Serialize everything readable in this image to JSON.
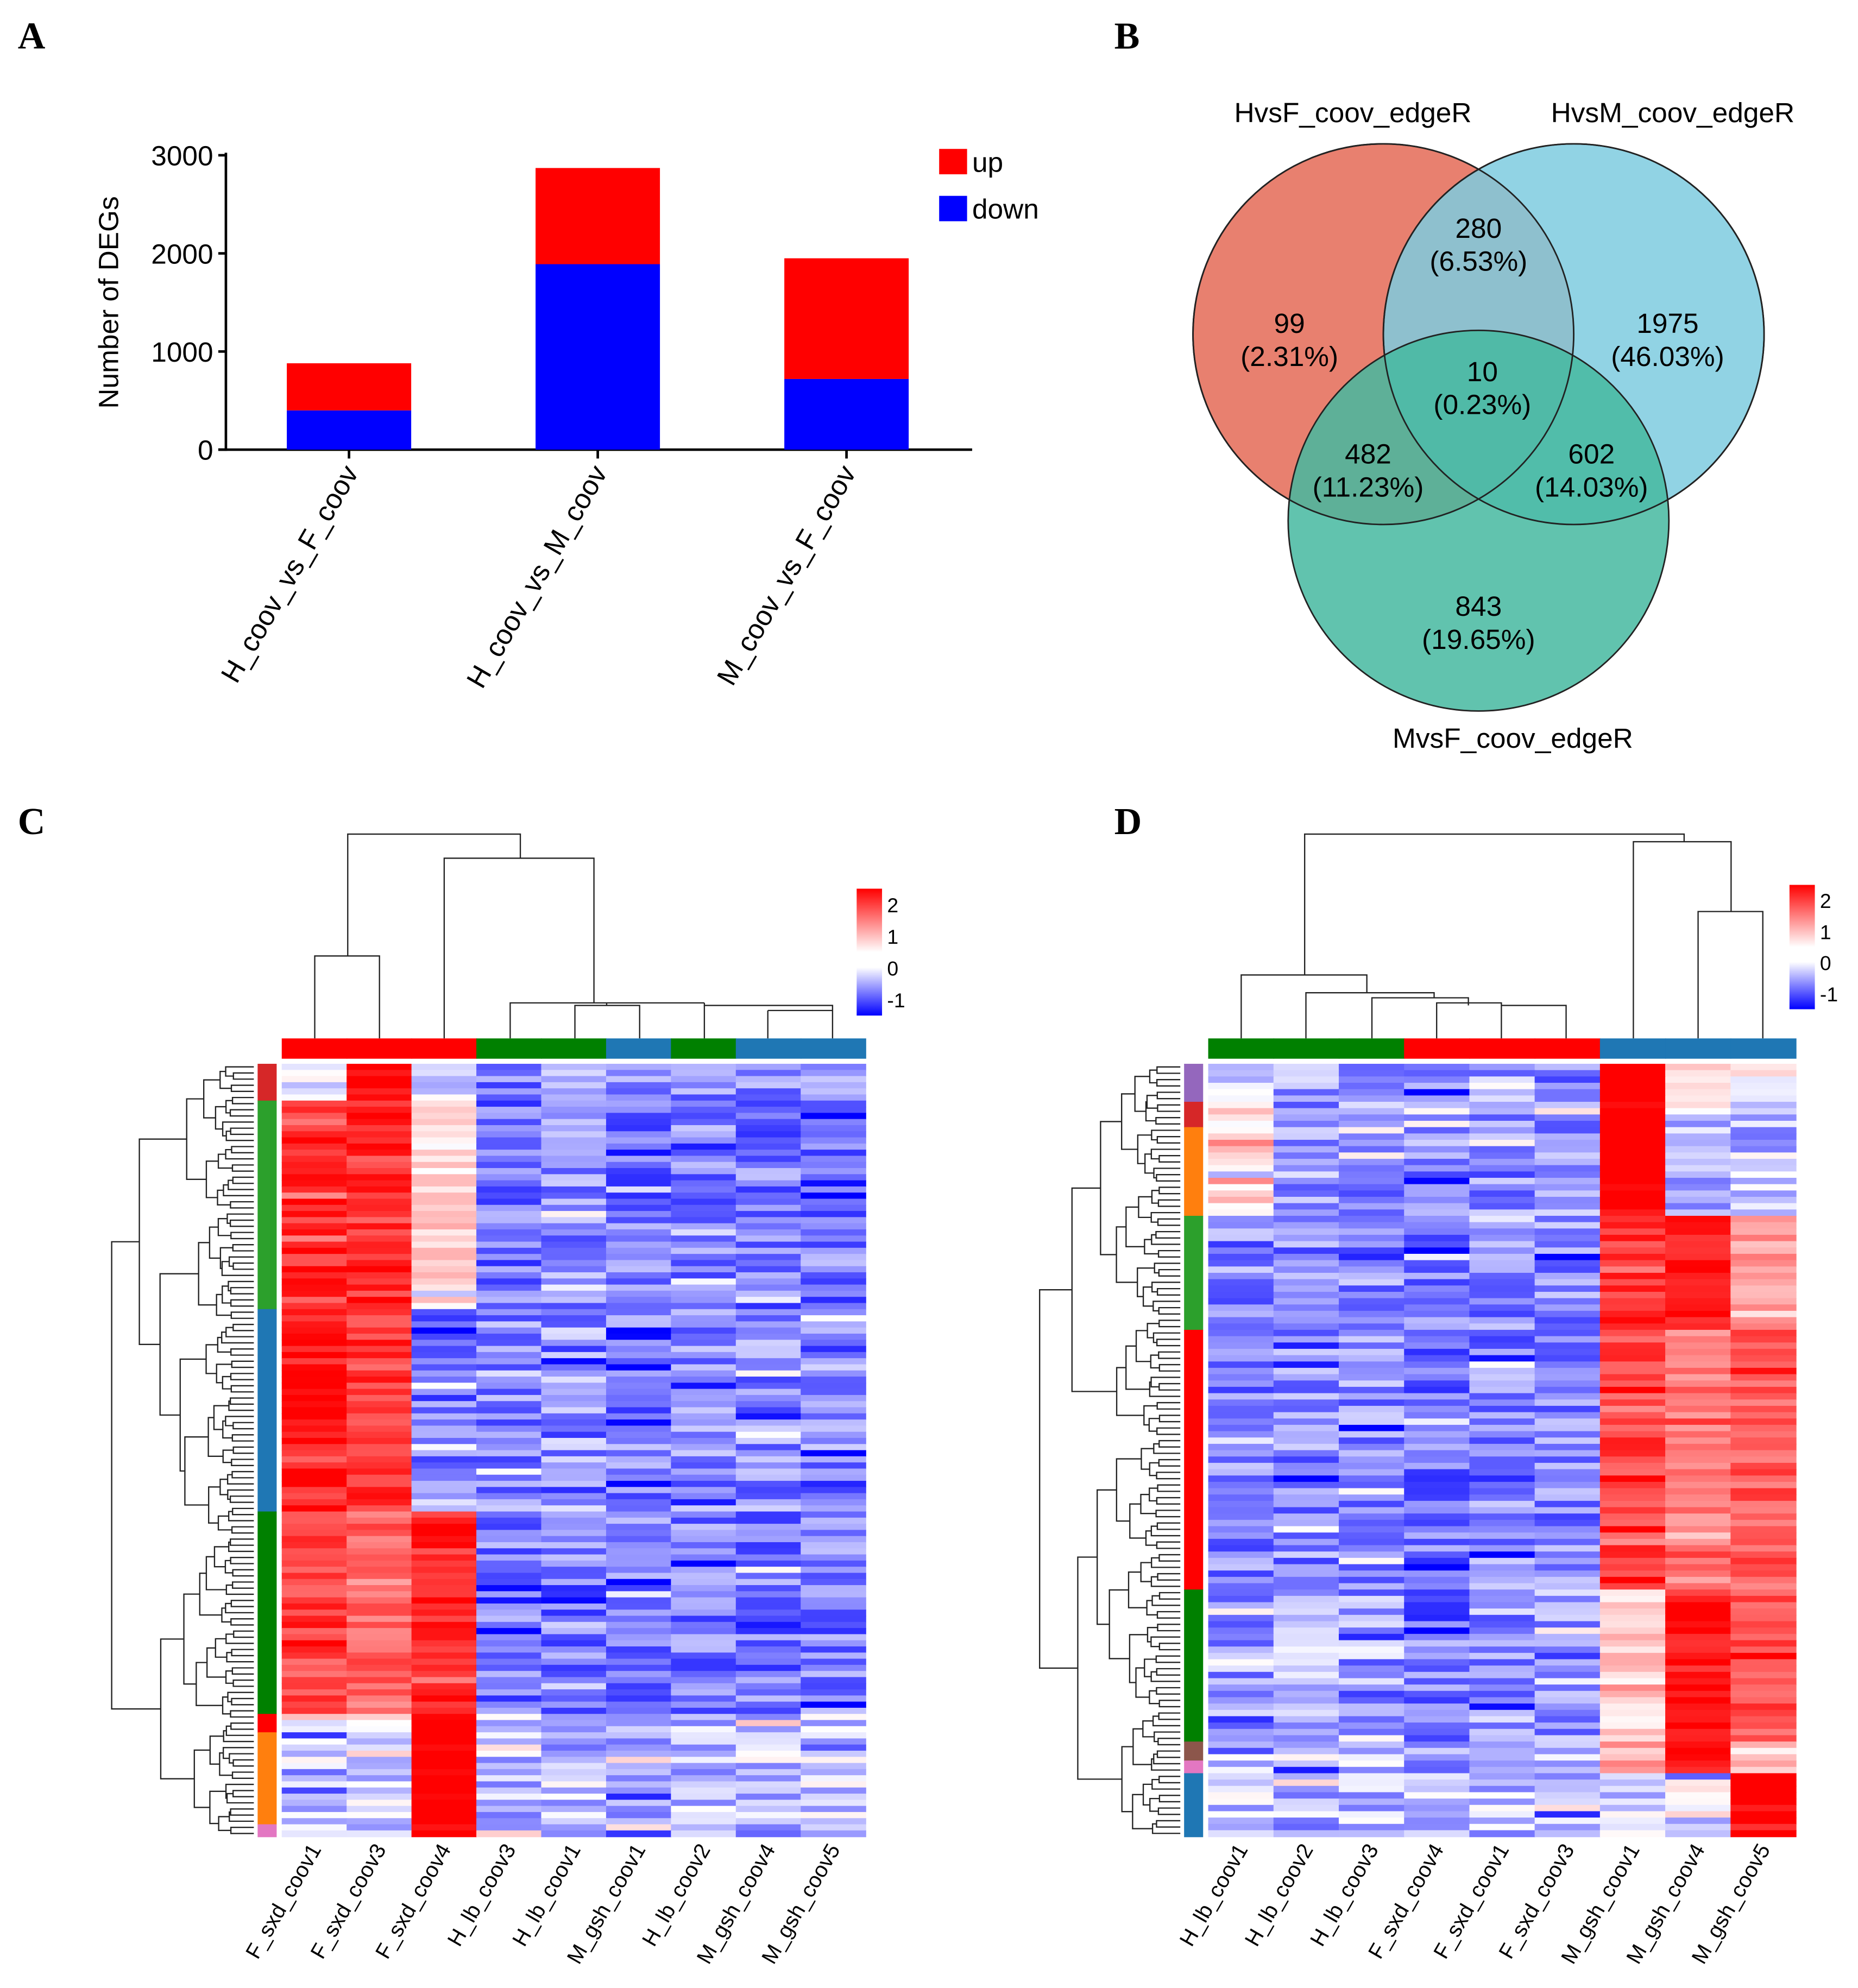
{
  "panels": {
    "a": "A",
    "b": "B",
    "c": "C",
    "d": "D"
  },
  "chart_data": [
    {
      "type": "bar",
      "stacked": true,
      "title": "",
      "xlabel": "",
      "ylabel": "Number of DEGs",
      "ylim": [
        0,
        3000
      ],
      "yticks": [
        "0",
        "1000",
        "2000",
        "3000"
      ],
      "categories": [
        "H_coov_vs_F_coov",
        "H_coov_vs_M_coov",
        "M_coov_vs_F_coov"
      ],
      "series": [
        {
          "name": "down",
          "color": "#0000ff",
          "values": [
            400,
            1890,
            720
          ]
        },
        {
          "name": "up",
          "color": "#ff0000",
          "values": [
            480,
            980,
            1230
          ]
        }
      ],
      "legend": "top-right"
    },
    {
      "type": "venn",
      "sets": [
        {
          "name": "HvsF_coov_edgeR",
          "color": "#e8806f"
        },
        {
          "name": "HvsM_coov_edgeR",
          "color": "#7ecbdf"
        },
        {
          "name": "MvsF_coov_edgeR",
          "color": "#45b8a0"
        }
      ],
      "regions": [
        {
          "sets": "HvsF only",
          "count": "99",
          "pct": "(2.31%)"
        },
        {
          "sets": "HvsF∩HvsM",
          "count": "280",
          "pct": "(6.53%)"
        },
        {
          "sets": "HvsM only",
          "count": "1975",
          "pct": "(46.03%)"
        },
        {
          "sets": "all three",
          "count": "10",
          "pct": "(0.23%)"
        },
        {
          "sets": "HvsF∩MvsF",
          "count": "482",
          "pct": "(11.23%)"
        },
        {
          "sets": "HvsM∩MvsF",
          "count": "602",
          "pct": "(14.03%)"
        },
        {
          "sets": "MvsF only",
          "count": "843",
          "pct": "(19.65%)"
        }
      ]
    },
    {
      "type": "heatmap",
      "colorbar": {
        "ticks": [
          "2",
          "1",
          "0",
          "-1"
        ],
        "range": [
          -1.5,
          2.5
        ]
      },
      "columns": [
        "F_sxd_coov1",
        "F_sxd_coov3",
        "F_sxd_coov4",
        "H_lb_coov3",
        "H_lb_coov1",
        "M_gsh_coov1",
        "H_lb_coov2",
        "M_gsh_coov4",
        "M_gsh_coov5"
      ],
      "column_groups": [
        "#ff0000",
        "#ff0000",
        "#ff0000",
        "#008000",
        "#008000",
        "#1f77b4",
        "#008000",
        "#1f77b4",
        "#1f77b4"
      ],
      "row_clusters": [
        {
          "color": "#d62728",
          "rows": 6,
          "means": [
            -0.3,
            2.6,
            -0.4,
            -0.7,
            -0.6,
            -0.7,
            -0.7,
            -0.6,
            -0.5
          ]
        },
        {
          "color": "#2ca02c",
          "rows": 34,
          "means": [
            2.0,
            2.1,
            0.4,
            -0.8,
            -0.7,
            -0.8,
            -0.8,
            -0.8,
            -0.8
          ]
        },
        {
          "color": "#1f77b4",
          "rows": 33,
          "means": [
            2.3,
            2.0,
            -0.8,
            -0.7,
            -0.6,
            -0.7,
            -0.7,
            -0.7,
            -0.7
          ]
        },
        {
          "color": "#008000",
          "rows": 33,
          "means": [
            1.8,
            1.5,
            2.1,
            -0.8,
            -0.8,
            -0.8,
            -0.8,
            -0.8,
            -0.8
          ]
        },
        {
          "color": "#ff0000",
          "rows": 3,
          "means": [
            0.2,
            0.4,
            2.5,
            -0.3,
            -0.4,
            -0.4,
            -0.4,
            -0.3,
            -0.3
          ]
        },
        {
          "color": "#ff7f0e",
          "rows": 15,
          "means": [
            -0.3,
            -0.2,
            2.8,
            -0.4,
            -0.3,
            -0.4,
            -0.4,
            -0.4,
            -0.3
          ]
        },
        {
          "color": "#e377c2",
          "rows": 2,
          "means": [
            -0.4,
            -0.4,
            2.5,
            -0.4,
            -0.4,
            -0.4,
            -0.4,
            -0.4,
            -0.4
          ]
        }
      ]
    },
    {
      "type": "heatmap",
      "colorbar": {
        "ticks": [
          "2",
          "1",
          "0",
          "-1"
        ],
        "range": [
          -1.5,
          2.5
        ]
      },
      "columns": [
        "H_lb_coov1",
        "H_lb_coov2",
        "H_lb_coov3",
        "F_sxd_coov4",
        "F_sxd_coov1",
        "F_sxd_coov3",
        "M_gsh_coov1",
        "M_gsh_coov4",
        "M_gsh_coov5"
      ],
      "column_groups": [
        "#008000",
        "#008000",
        "#008000",
        "#ff0000",
        "#ff0000",
        "#ff0000",
        "#1f77b4",
        "#1f77b4",
        "#1f77b4"
      ],
      "row_clusters": [
        {
          "color": "#9467bd",
          "rows": 6,
          "means": [
            -0.4,
            -0.6,
            -0.5,
            -0.8,
            -0.6,
            -0.7,
            2.8,
            0.3,
            0.1
          ]
        },
        {
          "color": "#d62728",
          "rows": 4,
          "means": [
            0.4,
            -0.6,
            -0.6,
            -0.7,
            -0.7,
            -0.6,
            2.8,
            -0.4,
            -0.4
          ]
        },
        {
          "color": "#ff7f0e",
          "rows": 14,
          "means": [
            0.4,
            -0.6,
            -0.7,
            -0.7,
            -0.7,
            -0.6,
            2.8,
            -0.5,
            -0.4
          ]
        },
        {
          "color": "#2ca02c",
          "rows": 18,
          "means": [
            -0.7,
            -0.7,
            -0.7,
            -0.8,
            -0.7,
            -0.7,
            2.0,
            2.4,
            1.0
          ]
        },
        {
          "color": "#ff0000",
          "rows": 41,
          "means": [
            -0.7,
            -0.7,
            -0.7,
            -0.8,
            -0.7,
            -0.7,
            1.8,
            1.3,
            1.6
          ]
        },
        {
          "color": "#008000",
          "rows": 24,
          "means": [
            -0.6,
            -0.5,
            -0.6,
            -0.8,
            -0.6,
            -0.6,
            0.5,
            2.5,
            1.7
          ]
        },
        {
          "color": "#8c564b",
          "rows": 3,
          "means": [
            -0.3,
            -0.4,
            -0.3,
            -0.5,
            -0.4,
            -0.4,
            0.8,
            2.5,
            0.5
          ]
        },
        {
          "color": "#e377c2",
          "rows": 2,
          "means": [
            -0.4,
            -0.5,
            -0.4,
            -0.5,
            -0.5,
            -0.5,
            1.0,
            2.3,
            0.5
          ]
        },
        {
          "color": "#1f77b4",
          "rows": 10,
          "means": [
            -0.3,
            -0.4,
            -0.4,
            -0.3,
            -0.4,
            -0.4,
            -0.3,
            -0.2,
            2.8
          ]
        }
      ]
    }
  ]
}
